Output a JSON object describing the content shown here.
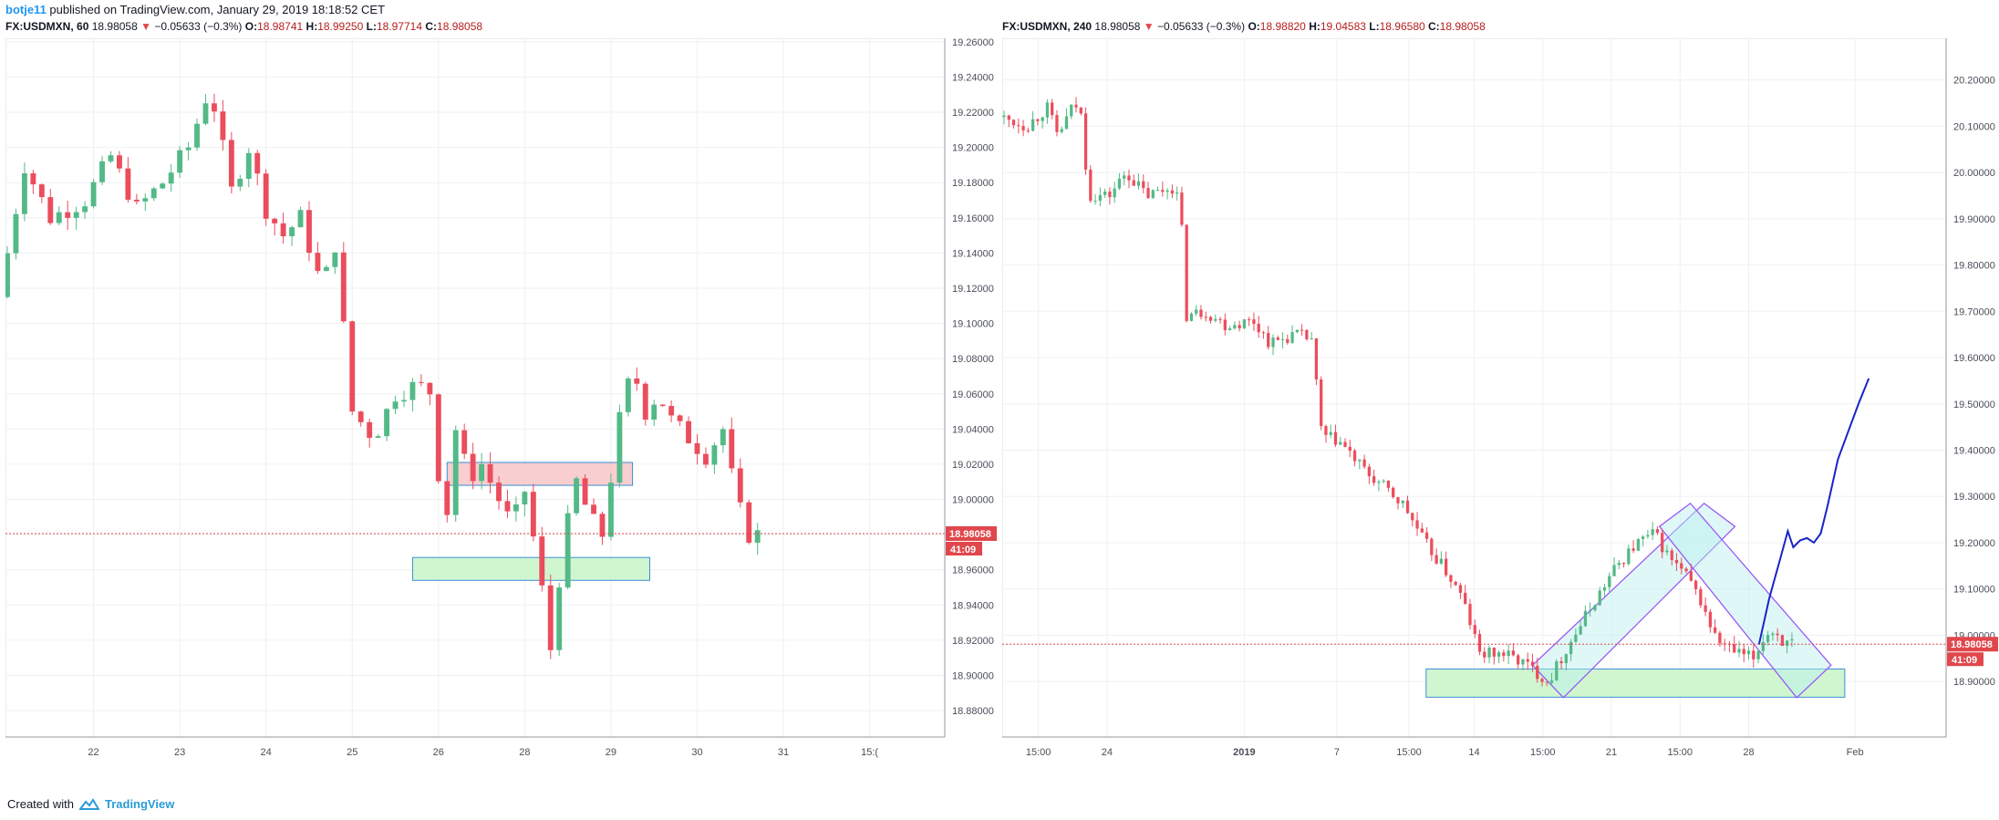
{
  "header": {
    "author": "botje11",
    "published_text": " published on TradingView.com, January 29, 2019 18:18:52 CET"
  },
  "footer": {
    "created_with": "Created with",
    "brand": "TradingView"
  },
  "colors": {
    "up": "#53b987",
    "down": "#eb4d5c",
    "resistance_zone": "#f7c6c8",
    "support_zone": "#c8f5c8",
    "projection": "#1a23c8",
    "channel": "#9b59f6",
    "price_line": "#e0474c"
  },
  "chart_data": [
    {
      "type": "candlestick",
      "symbol": "FX:USDMXN",
      "interval": "60",
      "last": "18.98058",
      "change": "−0.05633 (−0.3%)",
      "O": "18.98741",
      "H": "18.99250",
      "L": "18.97714",
      "C": "18.98058",
      "price_label": "18.98058",
      "countdown": "41:09",
      "x_ticks": [
        "22",
        "23",
        "24",
        "25",
        "26",
        "28",
        "29",
        "30",
        "31",
        "15:("
      ],
      "y_ticks": [
        "19.26000",
        "19.24000",
        "19.22000",
        "19.20000",
        "19.18000",
        "19.16000",
        "19.14000",
        "19.12000",
        "19.10000",
        "19.08000",
        "19.06000",
        "19.04000",
        "19.02000",
        "19.00000",
        "18.98000",
        "18.96000",
        "18.94000",
        "18.92000",
        "18.90000",
        "18.88000"
      ],
      "ylim": [
        18.865,
        19.262
      ],
      "current_price": 18.98058,
      "zones": [
        {
          "kind": "resistance",
          "x0": 25.1,
          "x1": 27.25,
          "y0": 19.008,
          "y1": 19.021
        },
        {
          "kind": "support",
          "x0": 24.7,
          "x1": 27.45,
          "y0": 18.954,
          "y1": 18.967
        }
      ],
      "anchors": [
        [
          20.0,
          19.115
        ],
        [
          20.3,
          19.19
        ],
        [
          20.6,
          19.16
        ],
        [
          21.0,
          19.17
        ],
        [
          21.3,
          19.195
        ],
        [
          21.6,
          19.165
        ],
        [
          21.9,
          19.18
        ],
        [
          22.2,
          19.2
        ],
        [
          22.45,
          19.235
        ],
        [
          22.7,
          19.175
        ],
        [
          22.9,
          19.2
        ],
        [
          23.1,
          19.165
        ],
        [
          23.3,
          19.15
        ],
        [
          23.5,
          19.16
        ],
        [
          23.75,
          19.12
        ],
        [
          23.9,
          19.145
        ],
        [
          24.1,
          19.05
        ],
        [
          24.35,
          19.035
        ],
        [
          24.6,
          19.06
        ],
        [
          24.85,
          19.065
        ],
        [
          25.05,
          19.06
        ],
        [
          25.15,
          18.97
        ],
        [
          25.3,
          19.04
        ],
        [
          25.45,
          19.012
        ],
        [
          25.6,
          19.02
        ],
        [
          25.75,
          19.005
        ],
        [
          25.95,
          18.985
        ],
        [
          26.1,
          19.005
        ],
        [
          26.25,
          18.965
        ],
        [
          26.4,
          18.915
        ],
        [
          26.55,
          18.975
        ],
        [
          26.7,
          19.01
        ],
        [
          26.85,
          18.99
        ],
        [
          27.0,
          18.98
        ],
        [
          27.2,
          19.045
        ],
        [
          27.35,
          19.075
        ],
        [
          27.5,
          19.05
        ],
        [
          27.65,
          19.06
        ],
        [
          27.8,
          19.045
        ],
        [
          28.0,
          19.035
        ],
        [
          28.2,
          19.025
        ],
        [
          28.4,
          19.04
        ],
        [
          28.55,
          19.0
        ],
        [
          28.7,
          18.98
        ]
      ],
      "amp": 0.007,
      "step": 0.1,
      "seed": 7,
      "x_range": [
        20.0,
        30.85
      ],
      "x_tick_values": [
        21,
        22,
        23,
        24,
        25,
        26,
        27,
        28,
        29,
        30
      ]
    },
    {
      "type": "candlestick",
      "symbol": "FX:USDMXN",
      "interval": "240",
      "last": "18.98058",
      "change": "−0.05633 (−0.3%)",
      "O": "18.98820",
      "H": "19.04583",
      "L": "18.96580",
      "C": "18.98058",
      "price_label": "18.98058",
      "countdown": "41:09",
      "x_ticks": [
        "15:00",
        "24",
        "2019",
        "7",
        "15:00",
        "14",
        "15:00",
        "21",
        "15:00",
        "28",
        "Feb"
      ],
      "y_ticks": [
        "20.20000",
        "20.10000",
        "20.00000",
        "19.90000",
        "19.80000",
        "19.70000",
        "19.60000",
        "19.50000",
        "19.40000",
        "19.30000",
        "19.20000",
        "19.10000",
        "19.00000",
        "18.90000"
      ],
      "ylim": [
        18.78,
        20.29
      ],
      "current_price": 18.98058,
      "zones": [
        {
          "kind": "support",
          "x0": 6.15,
          "x1": 12.25,
          "y0": 18.866,
          "y1": 18.927
        }
      ],
      "channels": [
        [
          [
            7.7,
            18.935
          ],
          [
            10.2,
            19.285
          ],
          [
            10.65,
            19.235
          ],
          [
            8.15,
            18.865
          ]
        ],
        [
          [
            9.55,
            19.235
          ],
          [
            10.0,
            19.285
          ],
          [
            12.05,
            18.935
          ],
          [
            11.55,
            18.865
          ]
        ]
      ],
      "projection": [
        [
          11.0,
          18.98
        ],
        [
          11.15,
          19.08
        ],
        [
          11.3,
          19.16
        ],
        [
          11.42,
          19.225
        ],
        [
          11.5,
          19.19
        ],
        [
          11.6,
          19.205
        ],
        [
          11.7,
          19.21
        ],
        [
          11.8,
          19.2
        ],
        [
          11.9,
          19.22
        ],
        [
          12.0,
          19.28
        ],
        [
          12.15,
          19.38
        ],
        [
          12.3,
          19.44
        ],
        [
          12.45,
          19.5
        ],
        [
          12.6,
          19.555
        ]
      ],
      "anchors": [
        [
          0.0,
          20.12
        ],
        [
          0.4,
          20.1
        ],
        [
          0.7,
          20.14
        ],
        [
          0.85,
          20.08
        ],
        [
          1.1,
          20.15
        ],
        [
          1.2,
          20.12
        ],
        [
          1.3,
          19.95
        ],
        [
          1.6,
          19.95
        ],
        [
          1.85,
          20.0
        ],
        [
          2.15,
          19.95
        ],
        [
          2.55,
          19.97
        ],
        [
          2.65,
          19.92
        ],
        [
          2.7,
          19.69
        ],
        [
          3.0,
          19.7
        ],
        [
          3.3,
          19.67
        ],
        [
          3.7,
          19.68
        ],
        [
          3.95,
          19.63
        ],
        [
          4.3,
          19.65
        ],
        [
          4.55,
          19.64
        ],
        [
          4.7,
          19.43
        ],
        [
          4.95,
          19.42
        ],
        [
          5.35,
          19.35
        ],
        [
          5.6,
          19.32
        ],
        [
          5.9,
          19.28
        ],
        [
          6.2,
          19.2
        ],
        [
          6.5,
          19.14
        ],
        [
          6.75,
          19.08
        ],
        [
          7.0,
          18.96
        ],
        [
          7.35,
          18.96
        ],
        [
          7.65,
          18.94
        ],
        [
          8.0,
          18.9
        ],
        [
          8.3,
          18.98
        ],
        [
          8.7,
          19.08
        ],
        [
          9.0,
          19.15
        ],
        [
          9.3,
          19.2
        ],
        [
          9.55,
          19.22
        ],
        [
          9.75,
          19.17
        ],
        [
          10.0,
          19.13
        ],
        [
          10.2,
          19.08
        ],
        [
          10.45,
          18.99
        ],
        [
          10.75,
          18.96
        ],
        [
          11.0,
          18.95
        ],
        [
          11.15,
          19.0
        ],
        [
          11.3,
          19.01
        ],
        [
          11.45,
          18.98
        ]
      ],
      "amp": 0.018,
      "step": 0.07,
      "seed": 13,
      "x_range": [
        0.0,
        13.7
      ],
      "x_tick_values": [
        0.5,
        1.5,
        3.5,
        4.85,
        5.9,
        6.85,
        7.85,
        8.85,
        9.85,
        10.85,
        12.4
      ]
    }
  ]
}
